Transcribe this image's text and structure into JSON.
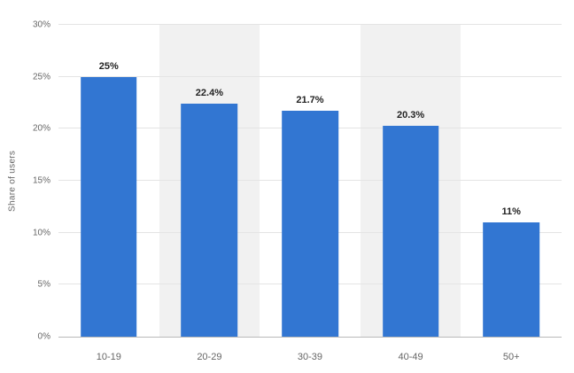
{
  "chart_data": {
    "type": "bar",
    "title": "",
    "categories": [
      "10-19",
      "20-29",
      "30-39",
      "40-49",
      "50+"
    ],
    "values": [
      25,
      22.4,
      21.7,
      20.3,
      11
    ],
    "value_labels": [
      "25%",
      "22.4%",
      "21.7%",
      "20.3%",
      "11%"
    ],
    "xlabel": "",
    "ylabel": "Share of users",
    "ylim": [
      0,
      30
    ],
    "ytick_step": 5,
    "ytick_labels": [
      "0%",
      "5%",
      "10%",
      "15%",
      "20%",
      "25%",
      "30%"
    ],
    "grid": true,
    "legend": false,
    "colors": {
      "bar": "#3276d2",
      "stripe": "#f1f1f1",
      "gridline": "#e4e4e4",
      "baseline": "#b9b9b9",
      "tick_text": "#666666",
      "value_text": "#222222"
    }
  }
}
